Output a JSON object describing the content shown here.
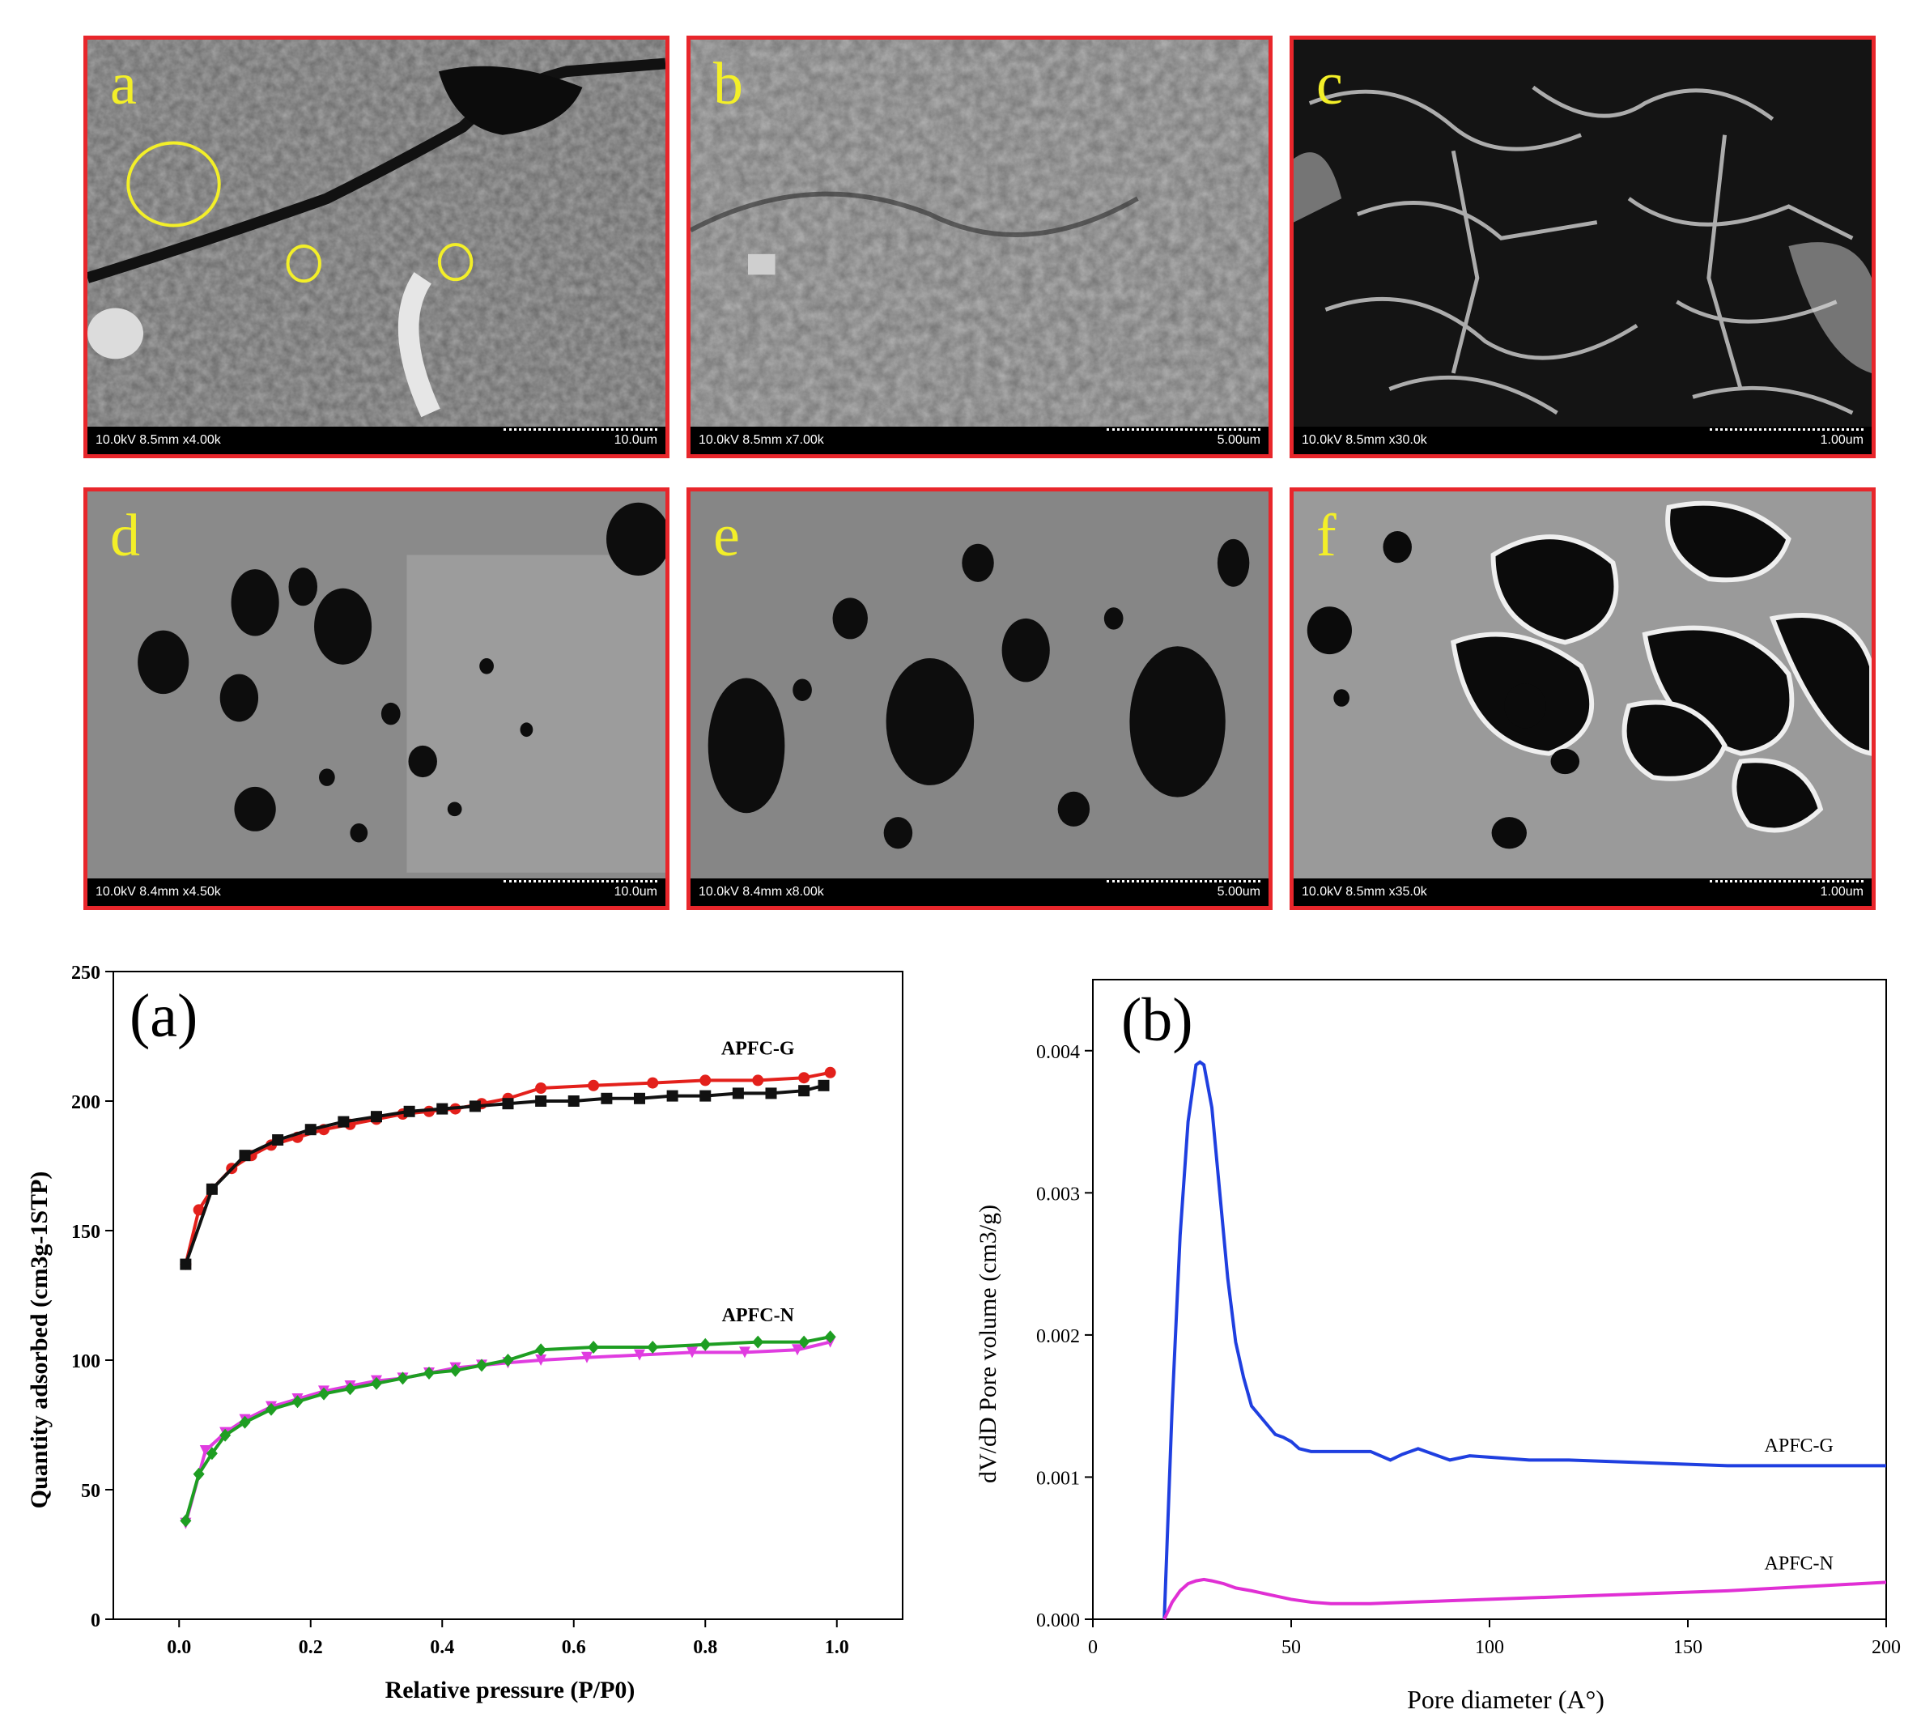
{
  "sem_panels": [
    {
      "letter": "a",
      "info": "10.0kV 8.5mm x4.00k",
      "scale": "10.0um"
    },
    {
      "letter": "b",
      "info": "10.0kV 8.5mm x7.00k",
      "scale": "5.00um"
    },
    {
      "letter": "c",
      "info": "10.0kV 8.5mm x30.0k",
      "scale": "1.00um"
    },
    {
      "letter": "d",
      "info": "10.0kV 8.4mm x4.50k",
      "scale": "10.0um"
    },
    {
      "letter": "e",
      "info": "10.0kV 8.4mm x8.00k",
      "scale": "5.00um"
    },
    {
      "letter": "f",
      "info": "10.0kV 8.5mm x35.0k",
      "scale": "1.00um"
    }
  ],
  "colors": {
    "panel_border": "#e8262b",
    "panel_letter": "#f3ef28"
  },
  "chart_data": [
    {
      "type": "line",
      "panel_label": "(a)",
      "xlabel": "Relative pressure (P/P0)",
      "ylabel": "Quantity adsorbed (cm3g-1STP)",
      "xlim": [
        -0.1,
        1.1
      ],
      "ylim": [
        0,
        250
      ],
      "xticks": [
        0.0,
        0.2,
        0.4,
        0.6,
        0.8,
        1.0
      ],
      "xtick_labels": [
        "0.0",
        "0.2",
        "0.4",
        "0.6",
        "0.8",
        "1.0"
      ],
      "yticks": [
        0,
        50,
        100,
        150,
        200,
        250
      ],
      "grid": false,
      "annotations": [
        {
          "text": "APFC-G",
          "x": 0.88,
          "y": 218
        },
        {
          "text": "APFC-N",
          "x": 0.88,
          "y": 115
        }
      ],
      "series": [
        {
          "color": "#e3201b",
          "marker": "circle",
          "x": [
            0.01,
            0.03,
            0.05,
            0.08,
            0.11,
            0.14,
            0.18,
            0.22,
            0.26,
            0.3,
            0.34,
            0.38,
            0.42,
            0.46,
            0.5,
            0.55,
            0.63,
            0.72,
            0.8,
            0.88,
            0.95,
            0.99
          ],
          "y": [
            137,
            158,
            166,
            174,
            179,
            183,
            186,
            189,
            191,
            193,
            195,
            196,
            197,
            199,
            201,
            205,
            206,
            207,
            208,
            208,
            209,
            211
          ]
        },
        {
          "color": "#111111",
          "marker": "square",
          "x": [
            0.01,
            0.05,
            0.1,
            0.15,
            0.2,
            0.25,
            0.3,
            0.35,
            0.4,
            0.45,
            0.5,
            0.55,
            0.6,
            0.65,
            0.7,
            0.75,
            0.8,
            0.85,
            0.9,
            0.95,
            0.98
          ],
          "y": [
            137,
            166,
            179,
            185,
            189,
            192,
            194,
            196,
            197,
            198,
            199,
            200,
            200,
            201,
            201,
            202,
            202,
            203,
            203,
            204,
            206
          ]
        },
        {
          "color": "#e03ce0",
          "marker": "triangle-down",
          "x": [
            0.01,
            0.04,
            0.07,
            0.1,
            0.14,
            0.18,
            0.22,
            0.26,
            0.3,
            0.34,
            0.38,
            0.42,
            0.46,
            0.5,
            0.55,
            0.62,
            0.7,
            0.78,
            0.86,
            0.94,
            0.99
          ],
          "y": [
            37,
            65,
            72,
            77,
            82,
            85,
            88,
            90,
            92,
            93,
            95,
            97,
            98,
            99,
            100,
            101,
            102,
            103,
            103,
            104,
            107
          ]
        },
        {
          "color": "#1e9e22",
          "marker": "diamond",
          "x": [
            0.01,
            0.03,
            0.05,
            0.07,
            0.1,
            0.14,
            0.18,
            0.22,
            0.26,
            0.3,
            0.34,
            0.38,
            0.42,
            0.46,
            0.5,
            0.55,
            0.63,
            0.72,
            0.8,
            0.88,
            0.95,
            0.99
          ],
          "y": [
            38,
            56,
            64,
            71,
            76,
            81,
            84,
            87,
            89,
            91,
            93,
            95,
            96,
            98,
            100,
            104,
            105,
            105,
            106,
            107,
            107,
            109
          ]
        }
      ]
    },
    {
      "type": "line",
      "panel_label": "(b)",
      "xlabel": "Pore diameter (A°)",
      "ylabel": "dV/dD Pore volume (cm3/g)",
      "xlim": [
        0,
        200
      ],
      "ylim": [
        0,
        0.0045
      ],
      "xticks": [
        0,
        50,
        100,
        150,
        200
      ],
      "yticks": [
        0.0,
        0.001,
        0.002,
        0.003,
        0.004
      ],
      "ytick_labels": [
        "0.000",
        "0.001",
        "0.002",
        "0.003",
        "0.004"
      ],
      "grid": false,
      "annotations": [
        {
          "text": "APFC-G",
          "x": 178,
          "y": 0.00118
        },
        {
          "text": "APFC-N",
          "x": 178,
          "y": 0.00035
        }
      ],
      "series": [
        {
          "color": "#1f3fe0",
          "x": [
            18,
            20,
            22,
            24,
            26,
            27,
            28,
            30,
            32,
            34,
            36,
            38,
            40,
            43,
            46,
            48,
            50,
            52,
            55,
            60,
            65,
            70,
            75,
            78,
            82,
            86,
            90,
            95,
            100,
            110,
            120,
            140,
            160,
            180,
            200
          ],
          "y": [
            0.0,
            0.0015,
            0.0027,
            0.0035,
            0.0039,
            0.00392,
            0.0039,
            0.0036,
            0.003,
            0.0024,
            0.00195,
            0.0017,
            0.0015,
            0.0014,
            0.0013,
            0.00128,
            0.00125,
            0.0012,
            0.00118,
            0.00118,
            0.00118,
            0.00118,
            0.00112,
            0.00116,
            0.0012,
            0.00116,
            0.00112,
            0.00115,
            0.00114,
            0.00112,
            0.00112,
            0.0011,
            0.00108,
            0.00108,
            0.00108
          ]
        },
        {
          "color": "#e02fd4",
          "x": [
            18,
            20,
            22,
            24,
            26,
            28,
            30,
            33,
            36,
            40,
            45,
            50,
            55,
            60,
            70,
            80,
            90,
            100,
            120,
            140,
            160,
            180,
            200
          ],
          "y": [
            0.0,
            0.00012,
            0.0002,
            0.00025,
            0.00027,
            0.00028,
            0.00027,
            0.00025,
            0.00022,
            0.0002,
            0.00017,
            0.00014,
            0.00012,
            0.00011,
            0.00011,
            0.00012,
            0.00013,
            0.00014,
            0.00016,
            0.00018,
            0.0002,
            0.00023,
            0.00026
          ]
        }
      ]
    }
  ]
}
